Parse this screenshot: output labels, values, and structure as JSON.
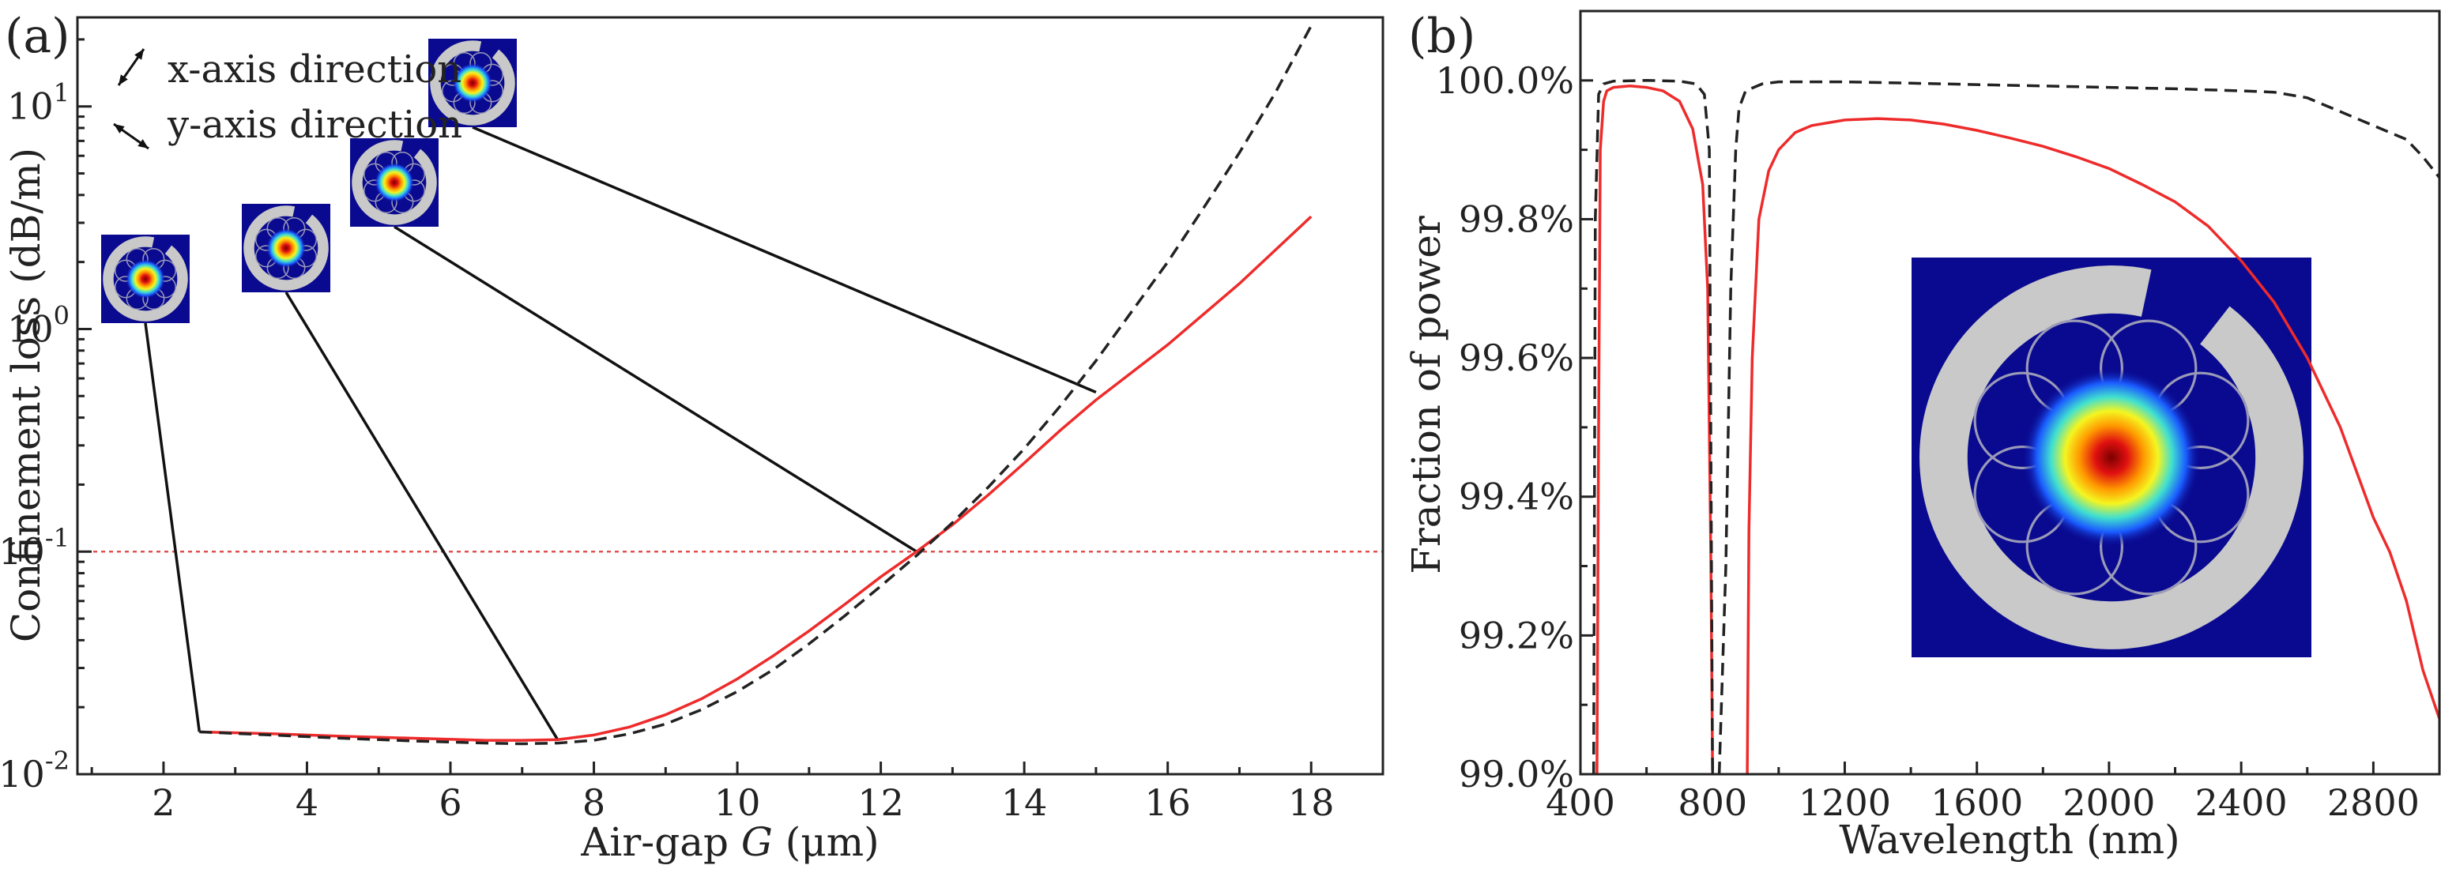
{
  "colors": {
    "solid_series": "#ee2b2b",
    "dashed_series": "#222222",
    "threshold_line": "#e05050",
    "inset_background": "#0a0a90",
    "inset_cladding": "#c9c9c9"
  },
  "chart_data": [
    {
      "panel_label": "(a)",
      "type": "line",
      "xlabel_prefix": "Air-gap ",
      "xlabel_var": "G",
      "xlabel_suffix": " (μm)",
      "ylabel": "Confinement loss (dB/m)",
      "xlim": [
        0.8,
        19
      ],
      "ylim_log10": [
        -2,
        1.4
      ],
      "yscale": "log",
      "x_ticks": [
        2,
        4,
        6,
        8,
        10,
        12,
        14,
        16,
        18
      ],
      "y_ticks": [
        {
          "base": "10",
          "exp": "-2",
          "log": -2
        },
        {
          "base": "10",
          "exp": "-1",
          "log": -1
        },
        {
          "base": "10",
          "exp": "0",
          "log": 0
        },
        {
          "base": "10",
          "exp": "1",
          "log": 1
        }
      ],
      "reference_line_y": 0.1,
      "legend": [
        {
          "label": "x-axis direction",
          "arrow": "diagonal-up-right"
        },
        {
          "label": "y-axis direction",
          "arrow": "diagonal-down-right"
        }
      ],
      "series": [
        {
          "name": "x-axis direction",
          "style": "solid",
          "x": [
            2.5,
            3.5,
            4.5,
            5.5,
            6.5,
            7.0,
            7.5,
            8.0,
            8.5,
            9.0,
            9.5,
            10.0,
            10.5,
            11.0,
            11.5,
            12.0,
            12.5,
            13.0,
            13.5,
            14.0,
            14.5,
            15.0,
            16.0,
            17.0,
            18.0
          ],
          "y": [
            0.0155,
            0.0152,
            0.0148,
            0.0145,
            0.0142,
            0.0142,
            0.0143,
            0.015,
            0.0163,
            0.0185,
            0.0218,
            0.0268,
            0.034,
            0.044,
            0.058,
            0.077,
            0.1,
            0.132,
            0.18,
            0.25,
            0.35,
            0.48,
            0.85,
            1.6,
            3.2
          ]
        },
        {
          "name": "y-axis direction",
          "style": "dashed",
          "x": [
            2.5,
            3.5,
            4.5,
            5.5,
            6.5,
            7.0,
            7.5,
            8.0,
            8.5,
            9.0,
            9.5,
            10.0,
            10.5,
            11.0,
            11.5,
            12.0,
            12.5,
            13.0,
            13.5,
            14.0,
            14.5,
            15.0,
            15.5,
            16.0,
            16.5,
            17.0,
            17.5,
            18.0
          ],
          "y": [
            0.0155,
            0.015,
            0.0145,
            0.0141,
            0.0138,
            0.0137,
            0.0138,
            0.0142,
            0.0152,
            0.0168,
            0.0195,
            0.0235,
            0.0295,
            0.0385,
            0.0515,
            0.07,
            0.096,
            0.135,
            0.195,
            0.29,
            0.45,
            0.72,
            1.2,
            2.0,
            3.5,
            6.2,
            11.5,
            23
          ]
        }
      ],
      "insets": [
        {
          "name": "mode-inset-g2.5",
          "anchor_x": 2.5,
          "anchor_y": 0.0155
        },
        {
          "name": "mode-inset-g7.5",
          "anchor_x": 7.5,
          "anchor_y": 0.0142
        },
        {
          "name": "mode-inset-g12.5",
          "anchor_x": 12.5,
          "anchor_y": 0.1
        },
        {
          "name": "mode-inset-g15",
          "anchor_x": 15.0,
          "anchor_y": 0.52
        }
      ]
    },
    {
      "panel_label": "(b)",
      "type": "line",
      "xlabel": "Wavelength (nm)",
      "ylabel": "Fraction of power",
      "xlim": [
        400,
        3000
      ],
      "ylim": [
        99.0,
        100.1
      ],
      "x_ticks": [
        400,
        800,
        1200,
        1600,
        2000,
        2400,
        2800
      ],
      "x_tick_labels": [
        "400",
        "800",
        "1200",
        "1600",
        "2000",
        "2400",
        "2800"
      ],
      "y_ticks": [
        99.0,
        99.2,
        99.4,
        99.6,
        99.8,
        100.0
      ],
      "y_tick_labels": [
        "99.0%",
        "99.2%",
        "99.4%",
        "99.6%",
        "99.8%",
        "100.0%"
      ],
      "series": [
        {
          "name": "solid",
          "style": "solid",
          "segments": [
            {
              "x": [
                450,
                455,
                460,
                470,
                480,
                500,
                550,
                600,
                650,
                700,
                740,
                770,
                785,
                795,
                800
              ],
              "y": [
                99.0,
                99.5,
                99.9,
                99.97,
                99.985,
                99.99,
                99.992,
                99.99,
                99.985,
                99.97,
                99.93,
                99.85,
                99.7,
                99.3,
                99.0
              ]
            },
            {
              "x": [
                905,
                910,
                920,
                940,
                970,
                1000,
                1050,
                1100,
                1200,
                1300,
                1400,
                1500,
                1600,
                1700,
                1800,
                1900,
                2000,
                2100,
                2200,
                2300,
                2400,
                2500,
                2600,
                2700,
                2800,
                2850,
                2900,
                2950,
                3000
              ],
              "y": [
                99.0,
                99.35,
                99.6,
                99.8,
                99.87,
                99.9,
                99.925,
                99.935,
                99.943,
                99.945,
                99.943,
                99.937,
                99.928,
                99.917,
                99.905,
                99.89,
                99.873,
                99.85,
                99.825,
                99.79,
                99.74,
                99.68,
                99.6,
                99.5,
                99.37,
                99.32,
                99.25,
                99.15,
                99.08
              ]
            }
          ]
        },
        {
          "name": "dashed",
          "style": "dashed",
          "segments": [
            {
              "x": [
                440,
                445,
                455,
                470,
                500,
                600,
                700,
                750,
                775,
                790,
                800
              ],
              "y": [
                99.0,
                99.8,
                99.98,
                99.995,
                99.999,
                100.0,
                99.999,
                99.995,
                99.98,
                99.9,
                99.0
              ]
            },
            {
              "x": [
                820,
                840,
                855,
                870,
                880,
                900,
                950,
                1000,
                1200,
                1400,
                1600,
                1800,
                2000,
                2200,
                2400,
                2500,
                2600,
                2650,
                2700,
                2750,
                2800,
                2850,
                2900,
                2950,
                3000
              ],
              "y": [
                99.0,
                99.3,
                99.7,
                99.9,
                99.96,
                99.985,
                99.995,
                99.998,
                99.998,
                99.996,
                99.994,
                99.992,
                99.99,
                99.988,
                99.985,
                99.983,
                99.975,
                99.965,
                99.955,
                99.945,
                99.935,
                99.925,
                99.915,
                99.89,
                99.86
              ]
            }
          ]
        }
      ],
      "insets": [
        {
          "name": "mode-inset-large"
        }
      ]
    }
  ]
}
